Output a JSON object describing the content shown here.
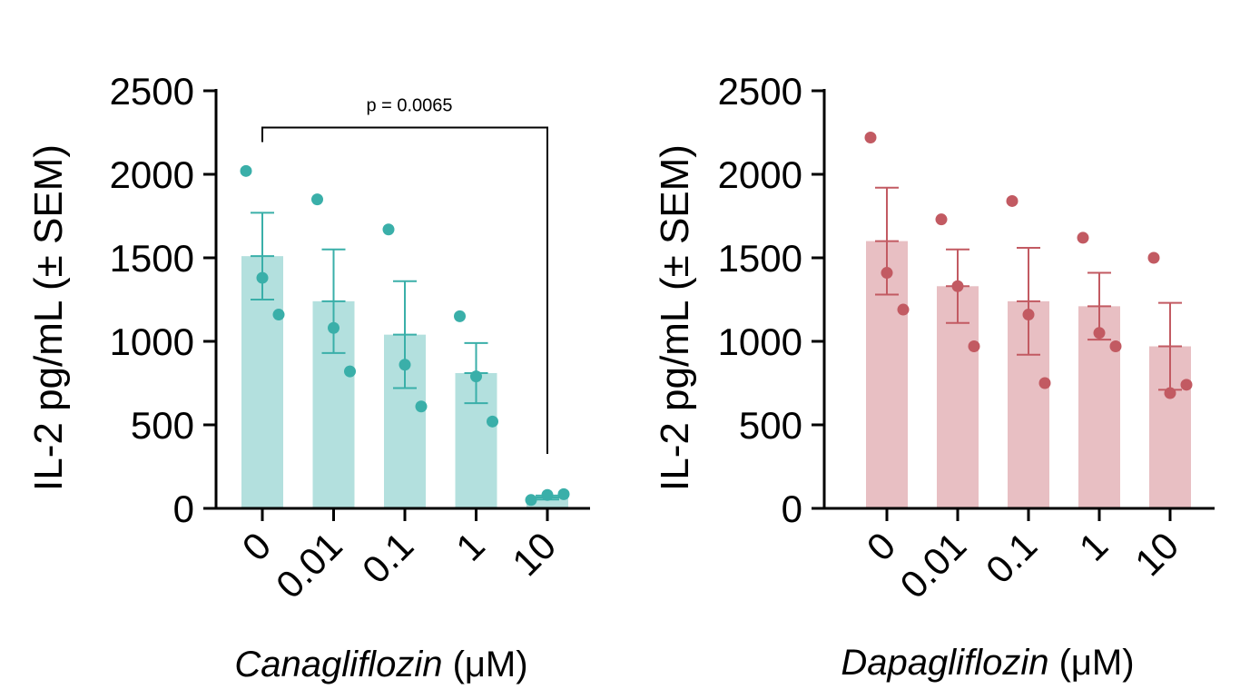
{
  "chart_data": [
    {
      "type": "bar",
      "drug": "Canagliflozin",
      "xlabel_italic": "Canagliflozin",
      "xlabel_unit": "(μM)",
      "ylabel": "IL-2  pg/mL (± SEM)",
      "ylim": [
        0,
        2500
      ],
      "yticks": [
        "0",
        "500",
        "1000",
        "1500",
        "2000",
        "2500"
      ],
      "categories": [
        "0",
        "0.01",
        "0.1",
        "1",
        "10"
      ],
      "values": [
        1510,
        1240,
        1040,
        810,
        65
      ],
      "sem": [
        260,
        310,
        320,
        180,
        12
      ],
      "points": [
        [
          2020,
          1380,
          1160
        ],
        [
          1850,
          1080,
          820
        ],
        [
          1670,
          860,
          610
        ],
        [
          1150,
          790,
          520
        ],
        [
          50,
          80,
          85
        ]
      ],
      "color": "#3aafa9",
      "bar_color": "#b3e0de",
      "significance": {
        "from": "0",
        "to": "10",
        "label": "p = 0.0065",
        "level": 2280
      }
    },
    {
      "type": "bar",
      "drug": "Dapagliflozin",
      "xlabel_italic": "Dapagliflozin",
      "xlabel_unit": "(μM)",
      "ylabel": "IL-2  pg/mL (± SEM)",
      "ylim": [
        0,
        2500
      ],
      "yticks": [
        "0",
        "500",
        "1000",
        "1500",
        "2000",
        "2500"
      ],
      "categories": [
        "0",
        "0.01",
        "0.1",
        "1",
        "10"
      ],
      "values": [
        1600,
        1330,
        1240,
        1210,
        970
      ],
      "sem": [
        320,
        220,
        320,
        200,
        260
      ],
      "points": [
        [
          2220,
          1410,
          1190
        ],
        [
          1730,
          1330,
          970
        ],
        [
          1840,
          1160,
          750
        ],
        [
          1620,
          1050,
          970
        ],
        [
          1500,
          690,
          740
        ]
      ],
      "color": "#c25a62",
      "bar_color": "#e8bfc3"
    }
  ]
}
